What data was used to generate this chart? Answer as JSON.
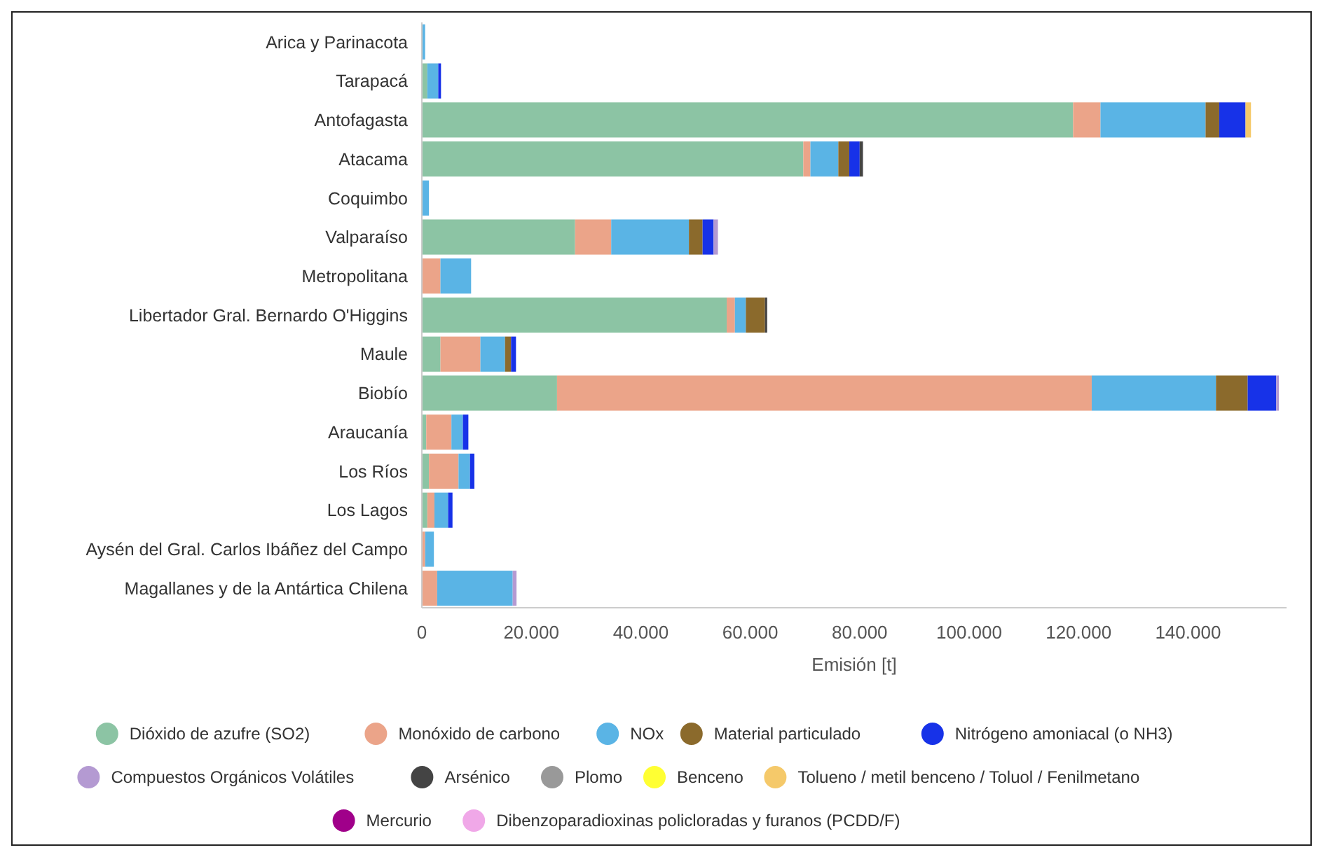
{
  "chart_data": {
    "type": "bar",
    "orientation": "horizontal",
    "stacked": true,
    "xlabel": "Emisión [t]",
    "categories": [
      "Arica y Parinacota",
      "Tarapacá",
      "Antofagasta",
      "Atacama",
      "Coquimbo",
      "Valparaíso",
      "Metropolitana",
      "Libertador Gral. Bernardo O'Higgins",
      "Maule",
      "Biobío",
      "Araucanía",
      "Los Ríos",
      "Los Lagos",
      "Aysén del Gral. Carlos Ibáñez del Campo",
      "Magallanes y de la Antártica Chilena"
    ],
    "series": [
      {
        "name": "Dióxido de azufre (SO2)",
        "color": "#8cc4a4",
        "values": [
          null,
          1000,
          119000,
          69700,
          null,
          28000,
          null,
          55700,
          3400,
          24700,
          800,
          1300,
          1000,
          null,
          null
        ]
      },
      {
        "name": "Monóxido de carbono",
        "color": "#eba489",
        "values": [
          null,
          null,
          5000,
          1300,
          null,
          6600,
          3400,
          1500,
          7300,
          97700,
          4600,
          5400,
          1300,
          600,
          2800
        ]
      },
      {
        "name": "NOx",
        "color": "#5ab4e5",
        "values": [
          600,
          2000,
          19200,
          5100,
          1300,
          14200,
          5600,
          2000,
          4500,
          22700,
          2100,
          2100,
          2500,
          1600,
          13800
        ]
      },
      {
        "name": "Material particulado",
        "color": "#8b6a2c",
        "values": [
          null,
          null,
          2500,
          2000,
          null,
          2500,
          null,
          3500,
          1100,
          5800,
          null,
          null,
          null,
          null,
          null
        ]
      },
      {
        "name": "Nitrógeno amoniacal (o NH3)",
        "color": "#1732e8",
        "values": [
          null,
          500,
          4800,
          1900,
          null,
          2000,
          null,
          null,
          900,
          5200,
          1000,
          800,
          800,
          null,
          null
        ]
      },
      {
        "name": "Compuestos Orgánicos Volátiles",
        "color": "#b49ad2",
        "values": [
          null,
          null,
          null,
          null,
          null,
          800,
          null,
          null,
          null,
          500,
          null,
          null,
          null,
          null,
          700
        ]
      },
      {
        "name": "Arsénico",
        "color": "#444444",
        "values": [
          null,
          null,
          null,
          600,
          null,
          null,
          null,
          400,
          null,
          null,
          null,
          null,
          null,
          null,
          null
        ]
      },
      {
        "name": "Plomo",
        "color": "#999999",
        "values": [
          null,
          null,
          null,
          null,
          null,
          null,
          null,
          null,
          null,
          null,
          null,
          null,
          null,
          null,
          null
        ]
      },
      {
        "name": "Benceno",
        "color": "#ffff33",
        "values": [
          null,
          null,
          null,
          null,
          null,
          null,
          null,
          null,
          null,
          null,
          null,
          null,
          null,
          null,
          null
        ]
      },
      {
        "name": "Tolueno / metil benceno / Toluol / Fenilmetano",
        "color": "#f5c96a",
        "values": [
          null,
          null,
          1000,
          null,
          null,
          null,
          null,
          null,
          null,
          null,
          null,
          null,
          null,
          null,
          null
        ]
      },
      {
        "name": "Mercurio",
        "color": "#a0008a",
        "values": [
          null,
          null,
          null,
          null,
          null,
          null,
          null,
          null,
          null,
          null,
          null,
          null,
          null,
          null,
          null
        ]
      },
      {
        "name": "Dibenzoparadioxinas policloradas y furanos (PCDD/F)",
        "color": "#f0a8e8",
        "values": [
          null,
          null,
          null,
          null,
          null,
          null,
          null,
          null,
          null,
          null,
          null,
          null,
          null,
          null,
          null
        ]
      }
    ],
    "xlim": [
      0,
      158000
    ],
    "xticks": [
      0,
      {
        "value": 20000,
        "label": "20.000"
      },
      {
        "value": 40000,
        "label": "40.000"
      },
      {
        "value": 60000,
        "label": "60.000"
      },
      {
        "value": 80000,
        "label": "80.000"
      },
      {
        "value": 100000,
        "label": "100.000"
      },
      {
        "value": 120000,
        "label": "120.000"
      },
      {
        "value": 140000,
        "label": "140.000"
      }
    ],
    "grid": false,
    "legend": "bottom"
  }
}
